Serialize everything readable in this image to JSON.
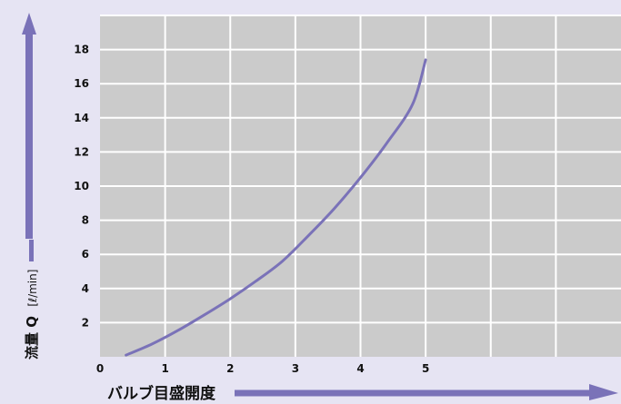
{
  "chart_data": {
    "type": "line",
    "title": "",
    "xlabel": "バルブ目盛開度",
    "ylabel": "流量 Q",
    "ylabel_unit": "[ℓ/min]",
    "xlim": [
      0,
      8
    ],
    "ylim": [
      0,
      20
    ],
    "x_ticks": [
      0,
      1,
      2,
      3,
      4,
      5
    ],
    "y_ticks": [
      2,
      4,
      6,
      8,
      10,
      12,
      14,
      16,
      18
    ],
    "grid": true,
    "series": [
      {
        "color": "#7a72b8",
        "x": [
          0.4,
          0.8,
          1.2,
          1.6,
          2.0,
          2.4,
          2.8,
          3.2,
          3.6,
          4.0,
          4.4,
          4.8,
          5.0
        ],
        "y": [
          0.1,
          0.75,
          1.55,
          2.45,
          3.4,
          4.45,
          5.6,
          7.1,
          8.7,
          10.5,
          12.5,
          14.8,
          17.4
        ]
      }
    ]
  },
  "colors": {
    "background": "#e6e4f3",
    "plot_bg": "#cbcbcb",
    "grid": "#ffffff",
    "accent": "#7a72b8",
    "text": "#111111"
  }
}
